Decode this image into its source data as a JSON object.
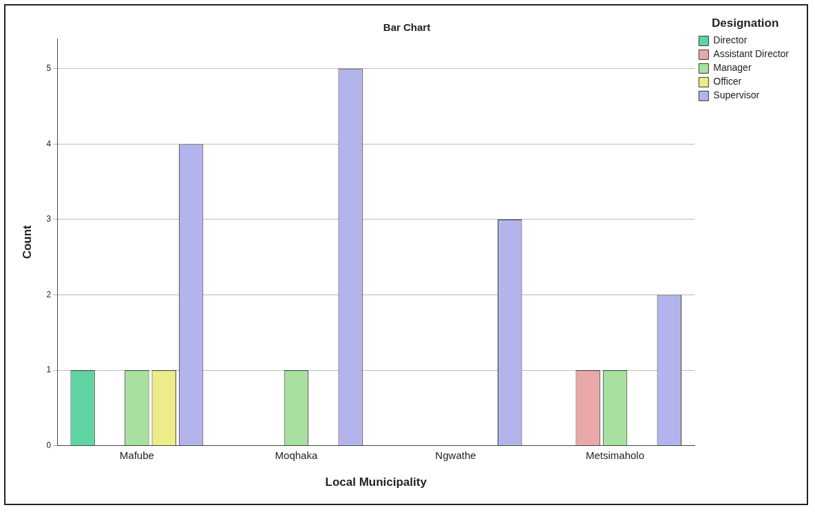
{
  "chart_data": {
    "type": "bar",
    "title": "Bar Chart",
    "xlabel": "Local Municipality",
    "ylabel": "Count",
    "legend_title": "Designation",
    "categories": [
      "Mafube",
      "Moqhaka",
      "Ngwathe",
      "Metsimaholo"
    ],
    "series": [
      {
        "name": "Director",
        "color": "#5fd4a0",
        "values": [
          1,
          0,
          0,
          0
        ]
      },
      {
        "name": "Assistant Director",
        "color": "#eaa8a8",
        "values": [
          0,
          0,
          0,
          1
        ]
      },
      {
        "name": "Manager",
        "color": "#a8e0a0",
        "values": [
          1,
          1,
          0,
          1
        ]
      },
      {
        "name": "Officer",
        "color": "#ecec88",
        "values": [
          1,
          0,
          0,
          0
        ]
      },
      {
        "name": "Supervisor",
        "color": "#b4b4ec",
        "values": [
          4,
          5,
          3,
          2
        ]
      }
    ],
    "ylim": [
      0,
      5.4
    ],
    "yticks": [
      0,
      1,
      2,
      3,
      4,
      5
    ],
    "grid": "y",
    "legend": "top right"
  }
}
